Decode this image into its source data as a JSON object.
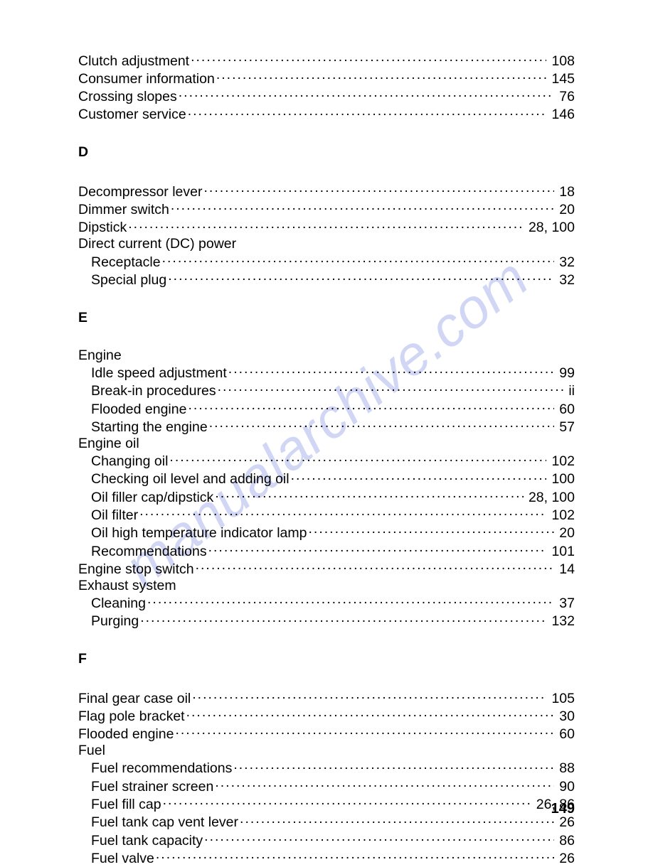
{
  "watermark": "manualarchive.com",
  "pageNumber": "149",
  "sections": [
    {
      "letter": "",
      "rows": [
        {
          "label": "Clutch adjustment",
          "page": "108",
          "sub": false,
          "header": false
        },
        {
          "label": "Consumer information",
          "page": "145",
          "sub": false,
          "header": false
        },
        {
          "label": "Crossing slopes",
          "page": "76",
          "sub": false,
          "header": false
        },
        {
          "label": "Customer service",
          "page": "146",
          "sub": false,
          "header": false
        }
      ]
    },
    {
      "letter": "D",
      "rows": [
        {
          "label": "Decompressor lever",
          "page": "18",
          "sub": false,
          "header": false
        },
        {
          "label": "Dimmer switch",
          "page": "20",
          "sub": false,
          "header": false
        },
        {
          "label": "Dipstick",
          "page": "28, 100",
          "sub": false,
          "header": false
        },
        {
          "label": "Direct current (DC) power",
          "page": "",
          "sub": false,
          "header": true
        },
        {
          "label": "Receptacle",
          "page": "32",
          "sub": true,
          "header": false
        },
        {
          "label": "Special plug",
          "page": "32",
          "sub": true,
          "header": false
        }
      ]
    },
    {
      "letter": "E",
      "rows": [
        {
          "label": "Engine",
          "page": "",
          "sub": false,
          "header": true
        },
        {
          "label": "Idle speed adjustment",
          "page": "99",
          "sub": true,
          "header": false
        },
        {
          "label": "Break-in procedures",
          "page": "ii",
          "sub": true,
          "header": false
        },
        {
          "label": "Flooded engine",
          "page": "60",
          "sub": true,
          "header": false
        },
        {
          "label": "Starting the engine",
          "page": "57",
          "sub": true,
          "header": false
        },
        {
          "label": "Engine oil",
          "page": "",
          "sub": false,
          "header": true
        },
        {
          "label": "Changing oil",
          "page": "102",
          "sub": true,
          "header": false
        },
        {
          "label": "Checking oil level and adding oil",
          "page": "100",
          "sub": true,
          "header": false
        },
        {
          "label": "Oil filler cap/dipstick",
          "page": "28, 100",
          "sub": true,
          "header": false
        },
        {
          "label": "Oil filter",
          "page": "102",
          "sub": true,
          "header": false
        },
        {
          "label": "Oil high temperature indicator lamp",
          "page": "20",
          "sub": true,
          "header": false
        },
        {
          "label": "Recommendations",
          "page": "101",
          "sub": true,
          "header": false
        },
        {
          "label": "Engine stop switch",
          "page": "14",
          "sub": false,
          "header": false
        },
        {
          "label": "Exhaust system",
          "page": "",
          "sub": false,
          "header": true
        },
        {
          "label": "Cleaning",
          "page": "37",
          "sub": true,
          "header": false
        },
        {
          "label": "Purging",
          "page": "132",
          "sub": true,
          "header": false
        }
      ]
    },
    {
      "letter": "F",
      "rows": [
        {
          "label": "Final gear case oil",
          "page": "105",
          "sub": false,
          "header": false
        },
        {
          "label": "Flag pole bracket",
          "page": "30",
          "sub": false,
          "header": false
        },
        {
          "label": "Flooded engine",
          "page": "60",
          "sub": false,
          "header": false
        },
        {
          "label": "Fuel",
          "page": "",
          "sub": false,
          "header": true
        },
        {
          "label": "Fuel recommendations",
          "page": "88",
          "sub": true,
          "header": false
        },
        {
          "label": "Fuel strainer screen",
          "page": "90",
          "sub": true,
          "header": false
        },
        {
          "label": "Fuel fill cap",
          "page": "26, 86",
          "sub": true,
          "header": false
        },
        {
          "label": "Fuel tank cap vent lever",
          "page": "26",
          "sub": true,
          "header": false
        },
        {
          "label": "Fuel tank capacity",
          "page": "86",
          "sub": true,
          "header": false
        },
        {
          "label": "Fuel valve",
          "page": "26",
          "sub": true,
          "header": false
        }
      ]
    }
  ]
}
